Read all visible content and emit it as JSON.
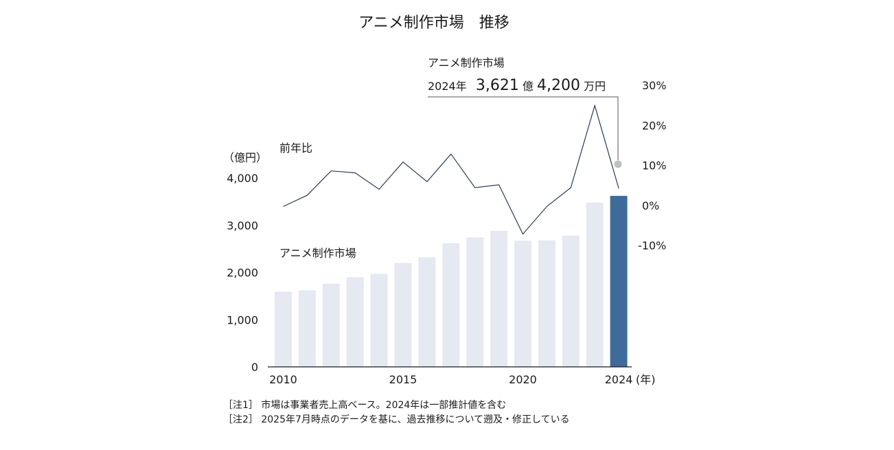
{
  "chart_data": {
    "type": "bar+line",
    "title": "アニメ制作市場　推移",
    "x": [
      2010,
      2011,
      2012,
      2013,
      2014,
      2015,
      2016,
      2017,
      2018,
      2019,
      2020,
      2021,
      2022,
      2023,
      2024
    ],
    "x_tick_labels": [
      "2010",
      "2015",
      "2020",
      "2024"
    ],
    "x_unit": "(年)",
    "bar_series": {
      "name": "アニメ制作市場",
      "values": [
        1590,
        1620,
        1760,
        1900,
        1970,
        2200,
        2320,
        2620,
        2740,
        2880,
        2670,
        2680,
        2780,
        3480,
        3621
      ],
      "unit_label": "（億円）",
      "ylim": [
        0,
        4000
      ],
      "ticks": [
        "4,000",
        "3,000",
        "2,000",
        "1,000",
        "0"
      ],
      "highlight_index": 14,
      "colors": {
        "default": "#e6e9f2",
        "highlight": "#3f6b9a"
      }
    },
    "line_series": {
      "name": "前年比",
      "values": [
        -0.3,
        2.5,
        8.6,
        8.1,
        4.0,
        10.8,
        5.9,
        12.8,
        4.4,
        5.1,
        -7.2,
        -0.3,
        4.4,
        24.9,
        4.2
      ],
      "ylim": [
        -10,
        30
      ],
      "ticks": [
        "30%",
        "20%",
        "10%",
        "0%",
        "-10%"
      ],
      "color": "#2b3a55"
    },
    "callout": {
      "line1": "アニメ制作市場",
      "year": "2024年",
      "num1": "3,621",
      "unit1": "億",
      "num2": "4,200",
      "unit2": "万円",
      "marker_color": "#c0c0c0"
    }
  },
  "notes": [
    "［注1］ 市場は事業者売上高ベース。2024年は一部推計値を含む",
    "［注2］ 2025年7月時点のデータを基に、過去推移について遡及・修正している"
  ]
}
